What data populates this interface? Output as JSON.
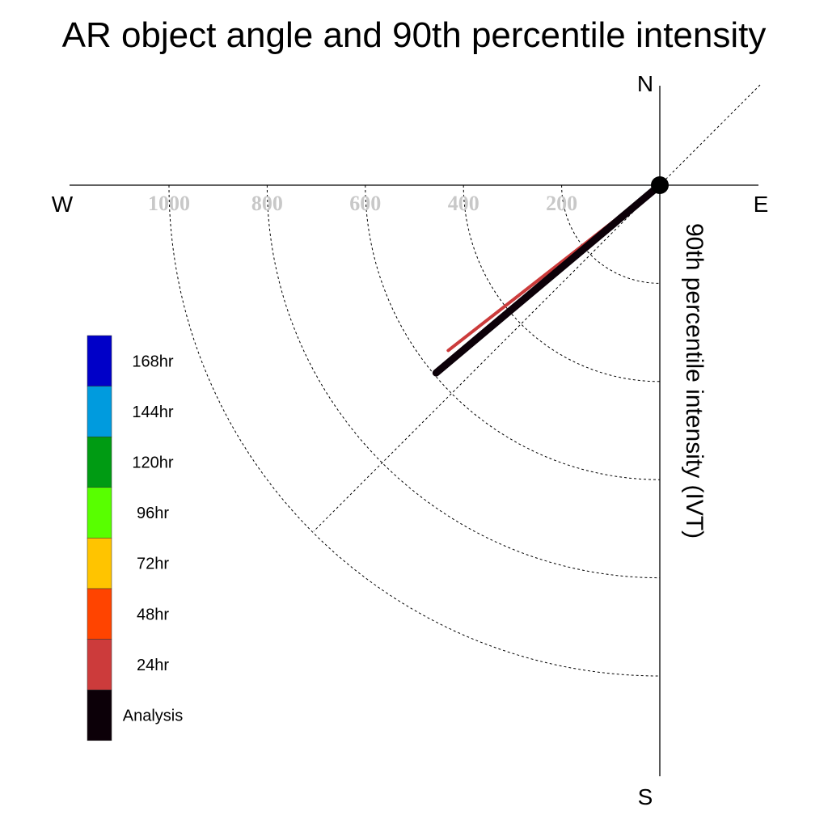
{
  "chart_data": {
    "type": "polar-vector",
    "title": "AR object angle and 90th percentile intensity",
    "ylabel": "90th percentile intensity (IVT)",
    "directions": {
      "north": "N",
      "south": "S",
      "east": "E",
      "west": "W"
    },
    "radial_ticks": [
      200,
      400,
      600,
      800,
      1000
    ],
    "radial_max": 1000,
    "reference_line_deg": 45,
    "series": [
      {
        "name": "24hr",
        "color": "#CC3B3B",
        "intensity": 547,
        "angle_deg": 232
      },
      {
        "name": "48hr",
        "color": "#FF4400",
        "intensity": 531,
        "angle_deg": 230
      },
      {
        "name": "72hr",
        "color": "#FFC400",
        "intensity": 531,
        "angle_deg": 230
      },
      {
        "name": "Analysis",
        "color": "#0C0008",
        "intensity": 595,
        "angle_deg": 230
      }
    ],
    "legend": [
      {
        "label": "168hr",
        "color": "#0000C8"
      },
      {
        "label": "144hr",
        "color": "#009BDE"
      },
      {
        "label": "120hr",
        "color": "#009B13"
      },
      {
        "label": "96hr",
        "color": "#58FF00"
      },
      {
        "label": "72hr",
        "color": "#FFC400"
      },
      {
        "label": "48hr",
        "color": "#FF4400"
      },
      {
        "label": "24hr",
        "color": "#CC3B3B"
      },
      {
        "label": "Analysis",
        "color": "#0C0008"
      }
    ],
    "grid": true
  }
}
